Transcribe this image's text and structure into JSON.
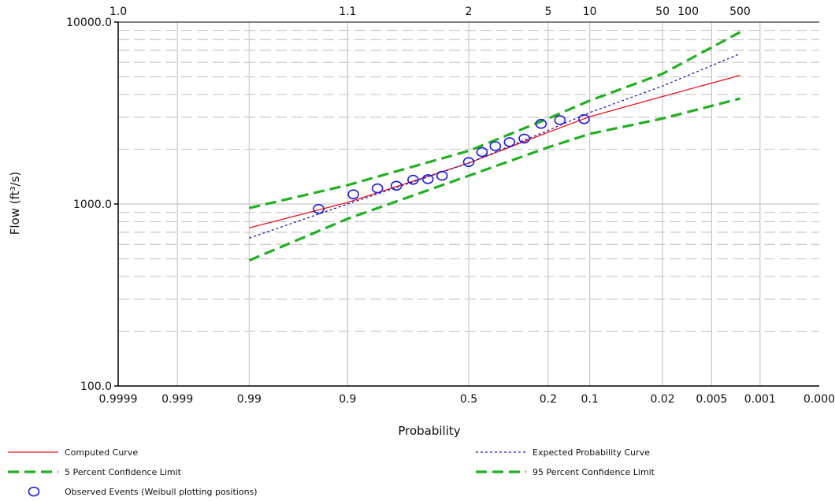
{
  "chart_data": {
    "type": "line",
    "xlabel": "Probability",
    "ylabel": "Flow (ft³/s)",
    "y_scale": "log",
    "ylim": [
      100,
      10000
    ],
    "x_scale": "normal-probability-exceedance",
    "xlim": [
      0.9999,
      0.0001
    ],
    "y_ticks": [
      {
        "value": 100,
        "label": "100.0"
      },
      {
        "value": 1000,
        "label": "1000.0"
      },
      {
        "value": 10000,
        "label": "10000.0"
      }
    ],
    "x_ticks": [
      {
        "p": 0.9999,
        "label": "0.9999"
      },
      {
        "p": 0.999,
        "label": "0.999"
      },
      {
        "p": 0.99,
        "label": "0.99"
      },
      {
        "p": 0.9,
        "label": "0.9"
      },
      {
        "p": 0.5,
        "label": "0.5"
      },
      {
        "p": 0.2,
        "label": "0.2"
      },
      {
        "p": 0.1,
        "label": "0.1"
      },
      {
        "p": 0.02,
        "label": "0.02"
      },
      {
        "p": 0.005,
        "label": "0.005"
      },
      {
        "p": 0.001,
        "label": "0.001"
      },
      {
        "p": 0.0001,
        "label": "0.000"
      }
    ],
    "top_ticks": [
      {
        "p": 0.9999,
        "label": "1.0"
      },
      {
        "p": 0.9,
        "label": "1.1"
      },
      {
        "p": 0.5,
        "label": "2"
      },
      {
        "p": 0.2,
        "label": "5"
      },
      {
        "p": 0.1,
        "label": "10"
      },
      {
        "p": 0.02,
        "label": "50"
      },
      {
        "p": 0.01,
        "label": "100"
      },
      {
        "p": 0.002,
        "label": "500"
      }
    ],
    "series": [
      {
        "name": "Computed Curve",
        "color": "#e8141e",
        "style": "solid",
        "points": [
          [
            0.99,
            740
          ],
          [
            0.9,
            1020
          ],
          [
            0.5,
            1680
          ],
          [
            0.2,
            2480
          ],
          [
            0.1,
            3020
          ],
          [
            0.02,
            3900
          ],
          [
            0.002,
            5100
          ]
        ]
      },
      {
        "name": "Expected Probability Curve",
        "color": "#1a1ab4",
        "style": "dotted",
        "points": [
          [
            0.99,
            650
          ],
          [
            0.9,
            1000
          ],
          [
            0.5,
            1680
          ],
          [
            0.2,
            2540
          ],
          [
            0.1,
            3180
          ],
          [
            0.02,
            4450
          ],
          [
            0.002,
            6700
          ]
        ]
      },
      {
        "name": "5 Percent Confidence Limit",
        "color": "#20b020",
        "style": "dashed",
        "points": [
          [
            0.99,
            950
          ],
          [
            0.9,
            1270
          ],
          [
            0.5,
            1960
          ],
          [
            0.2,
            2950
          ],
          [
            0.1,
            3700
          ],
          [
            0.02,
            5200
          ],
          [
            0.002,
            8800
          ]
        ]
      },
      {
        "name": "95 Percent Confidence Limit",
        "color": "#20b020",
        "style": "dashed",
        "points": [
          [
            0.99,
            490
          ],
          [
            0.9,
            830
          ],
          [
            0.5,
            1430
          ],
          [
            0.2,
            2050
          ],
          [
            0.1,
            2430
          ],
          [
            0.02,
            2950
          ],
          [
            0.002,
            3800
          ]
        ]
      }
    ],
    "observed": {
      "name": "Observed Events (Weibull plotting positions)",
      "color": "#1a1ae0",
      "points": [
        [
          0.944,
          940
        ],
        [
          0.889,
          1130
        ],
        [
          0.833,
          1220
        ],
        [
          0.778,
          1260
        ],
        [
          0.722,
          1360
        ],
        [
          0.667,
          1370
        ],
        [
          0.611,
          1430
        ],
        [
          0.5,
          1700
        ],
        [
          0.444,
          1930
        ],
        [
          0.389,
          2080
        ],
        [
          0.333,
          2190
        ],
        [
          0.278,
          2290
        ],
        [
          0.222,
          2760
        ],
        [
          0.167,
          2890
        ],
        [
          0.111,
          2930
        ]
      ]
    },
    "legend": {
      "position": "bottom",
      "entries": [
        {
          "label": "Computed Curve",
          "style": "solid",
          "color": "#e8141e"
        },
        {
          "label": "Expected Probability Curve",
          "style": "dotted",
          "color": "#1a1ab4"
        },
        {
          "label": "5 Percent Confidence Limit",
          "style": "dashed",
          "color": "#20b020"
        },
        {
          "label": "95 Percent Confidence Limit",
          "style": "dashed",
          "color": "#20b020"
        },
        {
          "label": "Observed Events (Weibull plotting positions)",
          "style": "circle",
          "color": "#1a1ae0"
        }
      ]
    },
    "grid": true
  }
}
